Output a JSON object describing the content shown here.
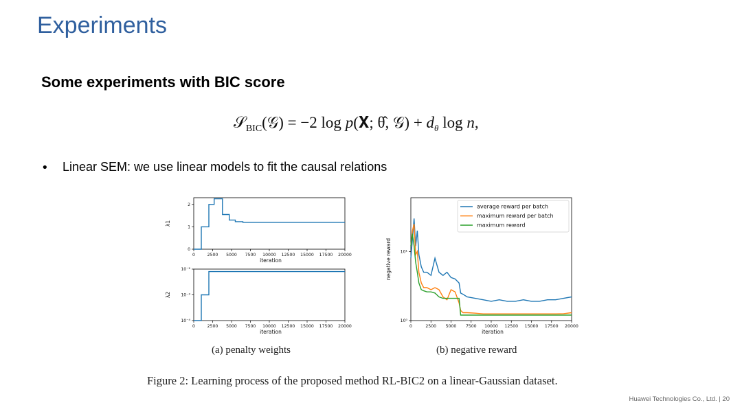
{
  "slide": {
    "title": "Experiments",
    "subtitle": "Some experiments with BIC score",
    "formula": {
      "lhs_S": "𝒮",
      "lhs_sub": "BIC",
      "lhs_arg": "(𝒢) = −2 log ",
      "p": "p",
      "args": "(𝐗; θ̂, 𝒢) + ",
      "d": "d",
      "d_sub": "θ",
      "tail": " log ",
      "n": "n",
      "end": ","
    },
    "bullet": "Linear SEM: we use linear models to fit the causal relations",
    "footer": "Huawei Technologies Co., Ltd.  |  20"
  },
  "figure": {
    "caption_a": "(a) penalty weights",
    "caption_b": "(b) negative reward",
    "caption_main": "Figure 2: Learning process of the proposed method RL-BIC2 on a linear-Gaussian dataset.",
    "series_color_avg": "#1f77b4",
    "series_color_max": "#ff7f0e",
    "series_color_best": "#2ca02c"
  },
  "chart_data": [
    {
      "type": "line",
      "panel": "(a) top",
      "xlabel": "iteration",
      "ylabel": "λ1",
      "xlim": [
        0,
        20000
      ],
      "ylim": [
        0,
        2.3
      ],
      "xticks": [
        "0",
        "2500",
        "5000",
        "7500",
        "10000",
        "12500",
        "15000",
        "17500",
        "20000"
      ],
      "yticks": [
        "0",
        "1",
        "2"
      ],
      "x": [
        0,
        1000,
        1000,
        2000,
        2000,
        2700,
        2700,
        3800,
        3800,
        4700,
        4700,
        5500,
        5500,
        6500,
        6500,
        20000
      ],
      "y": [
        0,
        0,
        1.0,
        1.0,
        2.0,
        2.0,
        2.25,
        2.25,
        1.55,
        1.55,
        1.3,
        1.3,
        1.23,
        1.23,
        1.2,
        1.2
      ]
    },
    {
      "type": "line",
      "panel": "(a) bottom",
      "xlabel": "iteration",
      "ylabel": "λ2",
      "yscale": "log",
      "xlim": [
        0,
        20000
      ],
      "ylim": [
        0.0001,
        0.01
      ],
      "xticks": [
        "0",
        "2500",
        "5000",
        "7500",
        "10000",
        "12500",
        "15000",
        "17500",
        "20000"
      ],
      "yticks": [
        "10⁻⁴",
        "10⁻³",
        "10⁻²"
      ],
      "x": [
        0,
        1000,
        1000,
        2000,
        2000,
        20000
      ],
      "y": [
        0.0001,
        0.0001,
        0.001,
        0.001,
        0.008,
        0.008
      ]
    },
    {
      "type": "line",
      "panel": "(b)",
      "xlabel": "iteration",
      "ylabel": "negative reward",
      "yscale": "log",
      "xlim": [
        0,
        20000
      ],
      "ylim": [
        1,
        60
      ],
      "xticks": [
        "0",
        "2500",
        "5000",
        "7500",
        "10000",
        "12500",
        "15000",
        "17500",
        "20000"
      ],
      "yticks": [
        "10⁰",
        "10¹"
      ],
      "legend": "top-right",
      "series": [
        {
          "name": "average reward per batch",
          "x": [
            0,
            200,
            400,
            600,
            800,
            1000,
            1300,
            1600,
            2000,
            2500,
            3000,
            3500,
            4000,
            4500,
            5000,
            5500,
            6000,
            6200,
            6500,
            7000,
            8000,
            9000,
            10000,
            11000,
            12000,
            13000,
            14000,
            15000,
            16000,
            17000,
            18000,
            19000,
            20000
          ],
          "y": [
            8,
            15,
            30,
            12,
            20,
            9,
            6,
            5,
            5,
            4.5,
            8,
            5,
            4.5,
            5,
            4.2,
            4,
            3.5,
            2.5,
            2.4,
            2.2,
            2.1,
            2.0,
            1.9,
            2.0,
            1.9,
            1.9,
            2.0,
            1.9,
            1.9,
            2.0,
            2.0,
            2.1,
            2.2
          ]
        },
        {
          "name": "maximum reward per batch",
          "x": [
            0,
            200,
            400,
            600,
            800,
            1000,
            1300,
            1600,
            2000,
            2500,
            3000,
            3500,
            4000,
            4500,
            5000,
            5500,
            6000,
            6200,
            6500,
            7000,
            8000,
            9000,
            10000,
            12000,
            14000,
            16000,
            18000,
            19000,
            20000
          ],
          "y": [
            12,
            20,
            25,
            9,
            10,
            5,
            3.5,
            3.0,
            3.0,
            2.8,
            3.0,
            2.8,
            2.2,
            2.0,
            2.8,
            2.6,
            1.8,
            1.4,
            1.3,
            1.3,
            1.28,
            1.25,
            1.25,
            1.25,
            1.25,
            1.25,
            1.25,
            1.26,
            1.3
          ]
        },
        {
          "name": "maximum reward",
          "x": [
            0,
            200,
            400,
            600,
            800,
            1000,
            1300,
            1600,
            2000,
            2500,
            3000,
            3500,
            4000,
            4500,
            5000,
            6000,
            6200,
            20000
          ],
          "y": [
            12,
            18,
            12,
            7,
            5,
            3.5,
            2.8,
            2.7,
            2.6,
            2.6,
            2.5,
            2.2,
            2.1,
            2.1,
            2.1,
            2.1,
            1.2,
            1.2
          ]
        }
      ]
    }
  ]
}
